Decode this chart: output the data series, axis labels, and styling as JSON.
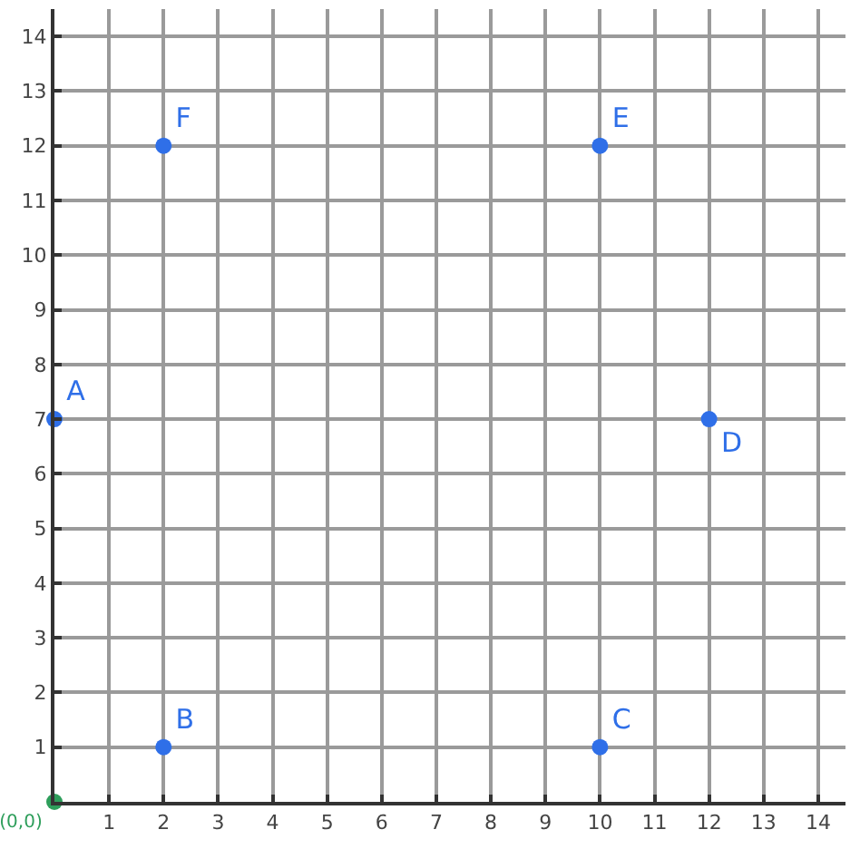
{
  "chart_data": {
    "type": "scatter",
    "xlim": [
      0,
      14.5
    ],
    "ylim": [
      0,
      14.5
    ],
    "xticks": [
      1,
      2,
      3,
      4,
      5,
      6,
      7,
      8,
      9,
      10,
      11,
      12,
      13,
      14
    ],
    "yticks": [
      1,
      2,
      3,
      4,
      5,
      6,
      7,
      8,
      9,
      10,
      11,
      12,
      13,
      14
    ],
    "grid": true,
    "marker": "circle",
    "legend": false,
    "series": [
      {
        "color": "#2f6fe8",
        "x": [
          0,
          2,
          10,
          12,
          10,
          2
        ],
        "values": [
          7,
          1,
          1,
          7,
          12,
          12
        ],
        "value_labels": [
          "A",
          "B",
          "C",
          "D",
          "E",
          "F"
        ]
      },
      {
        "color": "#2e9e5b",
        "x": [
          0
        ],
        "values": [
          0
        ],
        "value_labels": [
          "(0,0)"
        ]
      }
    ]
  }
}
